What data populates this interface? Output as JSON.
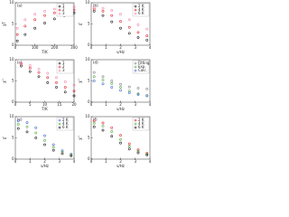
{
  "chart_data": [
    {
      "type": "scatter",
      "panel": "(a)",
      "x_label": "T/K",
      "y_label": "χT",
      "xlim": [
        0,
        300
      ],
      "ylim": [
        0,
        10
      ],
      "xticks": [
        0,
        100,
        200,
        300
      ],
      "yticks": [
        0,
        5,
        10
      ],
      "legend": "upper right",
      "x": [
        10,
        50,
        100,
        150,
        200,
        250,
        300
      ],
      "series": [
        {
          "name": "1",
          "color": "#222222",
          "values": [
            1,
            2.5,
            4,
            5.2,
            6.2,
            7,
            7.6
          ]
        },
        {
          "name": "2",
          "color": "#e0303a",
          "values": [
            2.5,
            4.5,
            6,
            7,
            7.6,
            8,
            8.3
          ]
        },
        {
          "name": "3",
          "color": "#f08fb0",
          "values": [
            4,
            6,
            7.3,
            8,
            8.5,
            8.8,
            9
          ]
        }
      ]
    },
    {
      "type": "scatter",
      "panel": "(b)",
      "x_label": "ν/Hz",
      "y_label": "χ'",
      "xlim": [
        0,
        4
      ],
      "ylim": [
        0,
        10
      ],
      "xticks": [
        0,
        1,
        2,
        3,
        4
      ],
      "yticks": [
        0,
        5,
        10
      ],
      "legend": "upper right",
      "x": [
        0.2,
        0.8,
        1.4,
        2,
        2.6,
        3.2,
        3.8
      ],
      "series": [
        {
          "name": "2 K",
          "color": "#222222",
          "values": [
            8,
            7,
            5.5,
            4,
            2.8,
            1.8,
            1.2
          ]
        },
        {
          "name": "4 K",
          "color": "#e0303a",
          "values": [
            8.5,
            8,
            7,
            5.6,
            4.2,
            3,
            2.2
          ]
        },
        {
          "name": "6 K",
          "color": "#f08fb0",
          "values": [
            9,
            8.7,
            8.2,
            7.3,
            6,
            4.8,
            3.8
          ]
        }
      ]
    },
    {
      "type": "scatter",
      "panel": "(c)",
      "x_label": "T/K",
      "y_label": "χ''",
      "xlim": [
        0,
        20
      ],
      "ylim": [
        0,
        10
      ],
      "xticks": [
        0,
        5,
        10,
        15,
        20
      ],
      "yticks": [
        0,
        5,
        10
      ],
      "legend": "upper right",
      "x": [
        2,
        5,
        8,
        11,
        14,
        17,
        20
      ],
      "series": [
        {
          "name": "1",
          "color": "#222222",
          "values": [
            8.5,
            7.2,
            6,
            4.6,
            3.5,
            2.4,
            1.5
          ]
        },
        {
          "name": "2",
          "color": "#e0303a",
          "values": [
            9,
            8,
            7,
            5.8,
            4.6,
            3.5,
            2.6
          ]
        },
        {
          "name": "3",
          "color": "#f08fb0",
          "values": [
            9.2,
            8.6,
            7.8,
            6.8,
            5.8,
            4.8,
            4
          ]
        }
      ]
    },
    {
      "type": "scatter",
      "panel": "(d)",
      "x_label": "ν/Hz",
      "y_label": "χ''",
      "xlim": [
        0,
        4
      ],
      "ylim": [
        0,
        10
      ],
      "xticks": [
        0,
        1,
        2,
        3,
        4
      ],
      "yticks": [
        0,
        5,
        10
      ],
      "legend": "upper right",
      "x": [
        0.2,
        0.8,
        1.4,
        2,
        2.6,
        3.2,
        3.8
      ],
      "series": [
        {
          "name": "Fitting",
          "color": "#888888",
          "values": [
            7,
            6,
            5,
            4.2,
            3.6,
            3.3,
            3.1
          ]
        },
        {
          "name": "Exp.",
          "color": "#5ab04a",
          "values": [
            6,
            5.2,
            4.4,
            3.5,
            2.6,
            2,
            1.6
          ]
        },
        {
          "name": "Calc.",
          "color": "#4a6fd0",
          "values": [
            5,
            4.3,
            3.5,
            2.8,
            2.2,
            1.8,
            1.5
          ]
        }
      ]
    },
    {
      "type": "scatter",
      "panel": "(e)",
      "x_label": "ν/Hz",
      "y_label": "χ'",
      "xlim": [
        0,
        4
      ],
      "ylim": [
        0,
        10
      ],
      "xticks": [
        0,
        1,
        2,
        3,
        4
      ],
      "yticks": [
        0,
        5,
        10
      ],
      "legend": "upper right",
      "x": [
        0.2,
        0.8,
        1.4,
        2,
        2.6,
        3.2,
        3.8
      ],
      "series": [
        {
          "name": "2 K",
          "color": "#4a6fd0",
          "values": [
            9,
            8.6,
            7.4,
            5.5,
            3.4,
            2,
            1.2
          ]
        },
        {
          "name": "4 K",
          "color": "#5ab04a",
          "values": [
            8.2,
            7.6,
            6.2,
            4.4,
            2.8,
            1.7,
            1
          ]
        },
        {
          "name": "6 K",
          "color": "#222222",
          "values": [
            7.2,
            6.4,
            5,
            3.4,
            2.1,
            1.3,
            0.8
          ]
        }
      ]
    },
    {
      "type": "scatter",
      "panel": "(f)",
      "x_label": "ν/Hz",
      "y_label": "χ''",
      "xlim": [
        0,
        4
      ],
      "ylim": [
        0,
        10
      ],
      "xticks": [
        0,
        1,
        2,
        3,
        4
      ],
      "yticks": [
        0,
        5,
        10
      ],
      "legend": "upper right",
      "x": [
        0.2,
        0.8,
        1.4,
        2,
        2.6,
        3.2,
        3.8
      ],
      "series": [
        {
          "name": "2 K",
          "color": "#e0303a",
          "values": [
            9,
            8.5,
            7.4,
            5.6,
            3.6,
            2.2,
            1.4
          ]
        },
        {
          "name": "4 K",
          "color": "#5ab04a",
          "values": [
            8.4,
            7.8,
            6.5,
            4.6,
            3,
            1.9,
            1.2
          ]
        },
        {
          "name": "6 K",
          "color": "#222222",
          "values": [
            7.6,
            6.8,
            5.4,
            3.8,
            2.4,
            1.5,
            1
          ]
        }
      ]
    }
  ]
}
